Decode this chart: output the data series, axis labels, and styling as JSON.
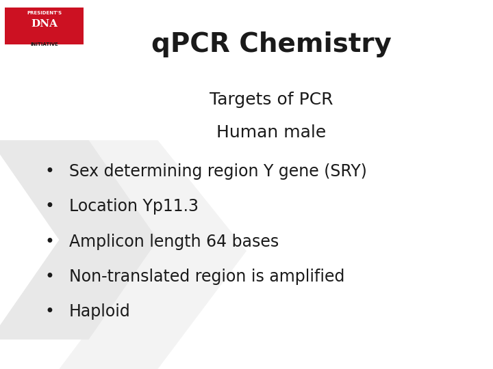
{
  "title": "qPCR Chemistry",
  "subtitle1": "Targets of PCR",
  "subtitle2": "Human male",
  "bullets": [
    "Sex determining region Y gene (SRY)",
    "Location Yp11.3",
    "Amplicon length 64 bases",
    "Non-translated region is amplified",
    "Haploid"
  ],
  "background_color": "#ffffff",
  "text_color": "#1a1a1a",
  "title_fontsize": 28,
  "subtitle_fontsize": 18,
  "bullet_fontsize": 17,
  "logo_bar_color": "#cc1122",
  "logo_text_color": "#ffffff",
  "watermark_color": "#e8e8e8"
}
